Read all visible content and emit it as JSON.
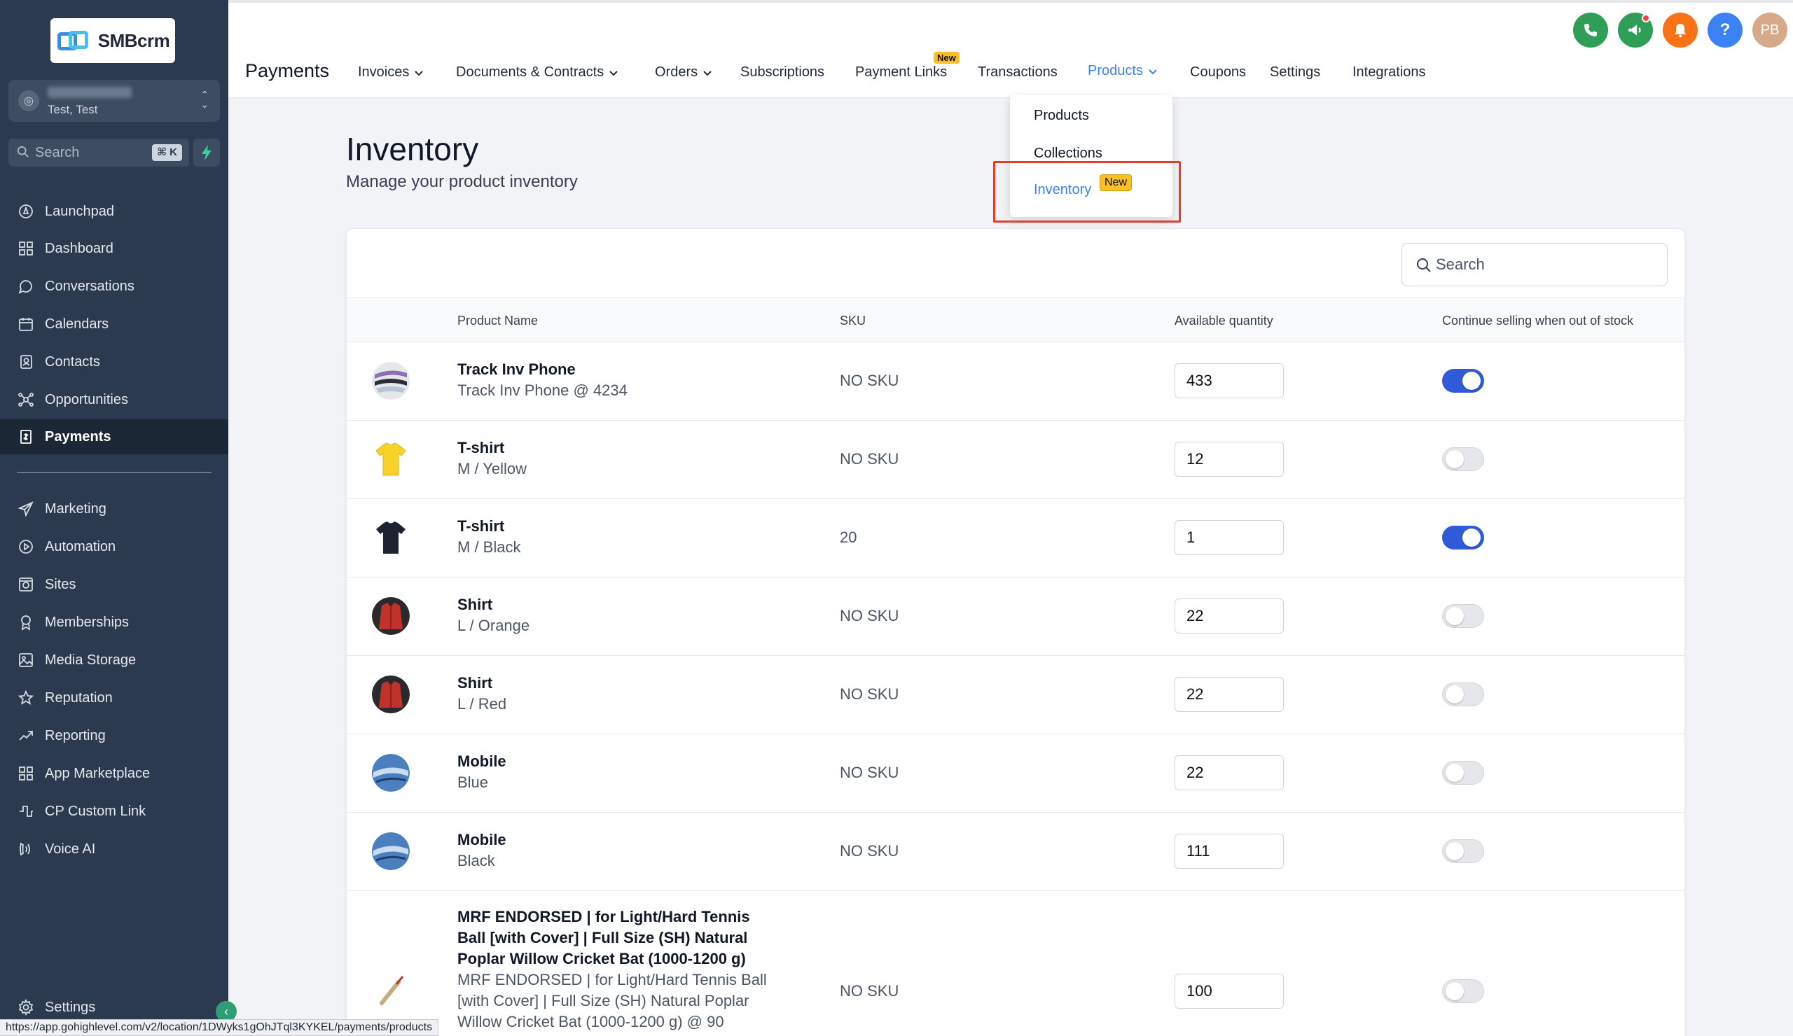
{
  "brand": {
    "logo_text": "SMBcrm"
  },
  "account": {
    "subtitle": "Test, Test"
  },
  "sidebar": {
    "search_placeholder": "Search",
    "search_shortcut": "⌘ K",
    "items": [
      {
        "label": "Launchpad",
        "icon": "rocket-icon"
      },
      {
        "label": "Dashboard",
        "icon": "grid-icon"
      },
      {
        "label": "Conversations",
        "icon": "chat-icon"
      },
      {
        "label": "Calendars",
        "icon": "calendar-icon"
      },
      {
        "label": "Contacts",
        "icon": "contacts-icon"
      },
      {
        "label": "Opportunities",
        "icon": "network-icon"
      },
      {
        "label": "Payments",
        "icon": "receipt-icon"
      },
      {
        "label": "Marketing",
        "icon": "send-icon"
      },
      {
        "label": "Automation",
        "icon": "play-circle-icon"
      },
      {
        "label": "Sites",
        "icon": "globe-icon"
      },
      {
        "label": "Memberships",
        "icon": "badge-icon"
      },
      {
        "label": "Media Storage",
        "icon": "image-icon"
      },
      {
        "label": "Reputation",
        "icon": "star-icon"
      },
      {
        "label": "Reporting",
        "icon": "trend-icon"
      },
      {
        "label": "App Marketplace",
        "icon": "apps-icon"
      },
      {
        "label": "CP Custom Link",
        "icon": "link-icon"
      },
      {
        "label": "Voice AI",
        "icon": "voice-icon"
      }
    ],
    "settings_label": "Settings"
  },
  "header": {
    "page_title": "Payments",
    "user_initials": "PB",
    "tabs": [
      {
        "label": "Invoices",
        "dropdown": true
      },
      {
        "label": "Documents & Contracts",
        "dropdown": true
      },
      {
        "label": "Orders",
        "dropdown": true
      },
      {
        "label": "Subscriptions"
      },
      {
        "label": "Payment Links",
        "badge": "New"
      },
      {
        "label": "Transactions"
      },
      {
        "label": "Products",
        "dropdown": true,
        "active": true
      },
      {
        "label": "Coupons"
      },
      {
        "label": "Settings"
      },
      {
        "label": "Integrations"
      }
    ]
  },
  "products_menu": {
    "items": [
      "Products",
      "Collections",
      "Inventory"
    ],
    "inventory_badge": "New"
  },
  "content": {
    "title": "Inventory",
    "subtitle": "Manage your product inventory",
    "search_placeholder": "Search"
  },
  "table": {
    "columns": [
      "Product Name",
      "SKU",
      "Available quantity",
      "Continue selling when out of stock"
    ],
    "rows": [
      {
        "name": "Track Inv Phone",
        "variant": "Track Inv Phone @ 4234",
        "sku": "NO SKU",
        "qty": "433",
        "continue_selling": true,
        "thumb": "phone"
      },
      {
        "name": "T-shirt",
        "variant": "M / Yellow",
        "sku": "NO SKU",
        "qty": "12",
        "continue_selling": false,
        "thumb": "tshirt-yellow"
      },
      {
        "name": "T-shirt",
        "variant": "M / Black",
        "sku": "20",
        "qty": "1",
        "continue_selling": true,
        "thumb": "tshirt-black"
      },
      {
        "name": "Shirt",
        "variant": "L / Orange",
        "sku": "NO SKU",
        "qty": "22",
        "continue_selling": false,
        "thumb": "shirt-red"
      },
      {
        "name": "Shirt",
        "variant": "L / Red",
        "sku": "NO SKU",
        "qty": "22",
        "continue_selling": false,
        "thumb": "shirt-red"
      },
      {
        "name": "Mobile",
        "variant": "Blue",
        "sku": "NO SKU",
        "qty": "22",
        "continue_selling": false,
        "thumb": "mobile"
      },
      {
        "name": "Mobile",
        "variant": "Black",
        "sku": "NO SKU",
        "qty": "111",
        "continue_selling": false,
        "thumb": "mobile"
      },
      {
        "name": "MRF ENDORSED | for Light/Hard Tennis Ball [with Cover] | Full Size (SH) Natural Poplar Willow Cricket Bat (1000-1200 g)",
        "variant": "MRF ENDORSED | for Light/Hard Tennis Ball [with Cover] | Full Size (SH) Natural Poplar Willow Cricket Bat (1000-1200 g) @ 90",
        "sku": "NO SKU",
        "qty": "100",
        "continue_selling": false,
        "thumb": "bat"
      }
    ]
  },
  "status_bar": {
    "url": "https://app.gohighlevel.com/v2/location/1DWyks1gOhJTql3KYKEL/payments/products"
  },
  "colors": {
    "sidebar_bg": "#2b3a4e",
    "accent_blue": "#3b82f6",
    "toggle_on": "#2f5bd9",
    "highlight_red": "#e43b2c",
    "badge_yellow": "#fbbf24"
  }
}
